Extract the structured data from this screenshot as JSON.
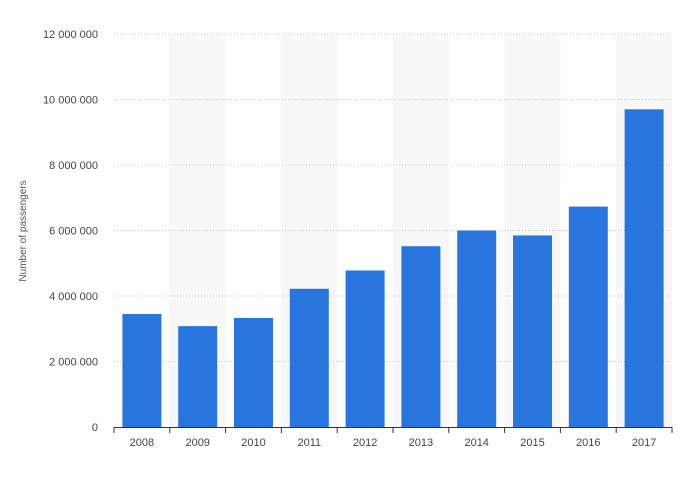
{
  "chart_data": {
    "type": "bar",
    "title": "",
    "xlabel": "",
    "ylabel": "Number of passengers",
    "categories": [
      "2008",
      "2009",
      "2010",
      "2011",
      "2012",
      "2013",
      "2014",
      "2015",
      "2016",
      "2017"
    ],
    "values": [
      3450000,
      3080000,
      3330000,
      4220000,
      4780000,
      5520000,
      6000000,
      5850000,
      6730000,
      9700000
    ],
    "ylim": [
      0,
      12000000
    ],
    "yticks": [
      0,
      2000000,
      4000000,
      6000000,
      8000000,
      10000000,
      12000000
    ],
    "ytick_labels": [
      "0",
      "2 000 000",
      "4 000 000",
      "6 000 000",
      "8 000 000",
      "10 000 000",
      "12 000 000"
    ],
    "grid": true,
    "legend": "none",
    "colors": {
      "bar": "#2876dd",
      "band": "#f7f7f7",
      "grid": "#c8c8c8",
      "axis": "#333333"
    }
  }
}
